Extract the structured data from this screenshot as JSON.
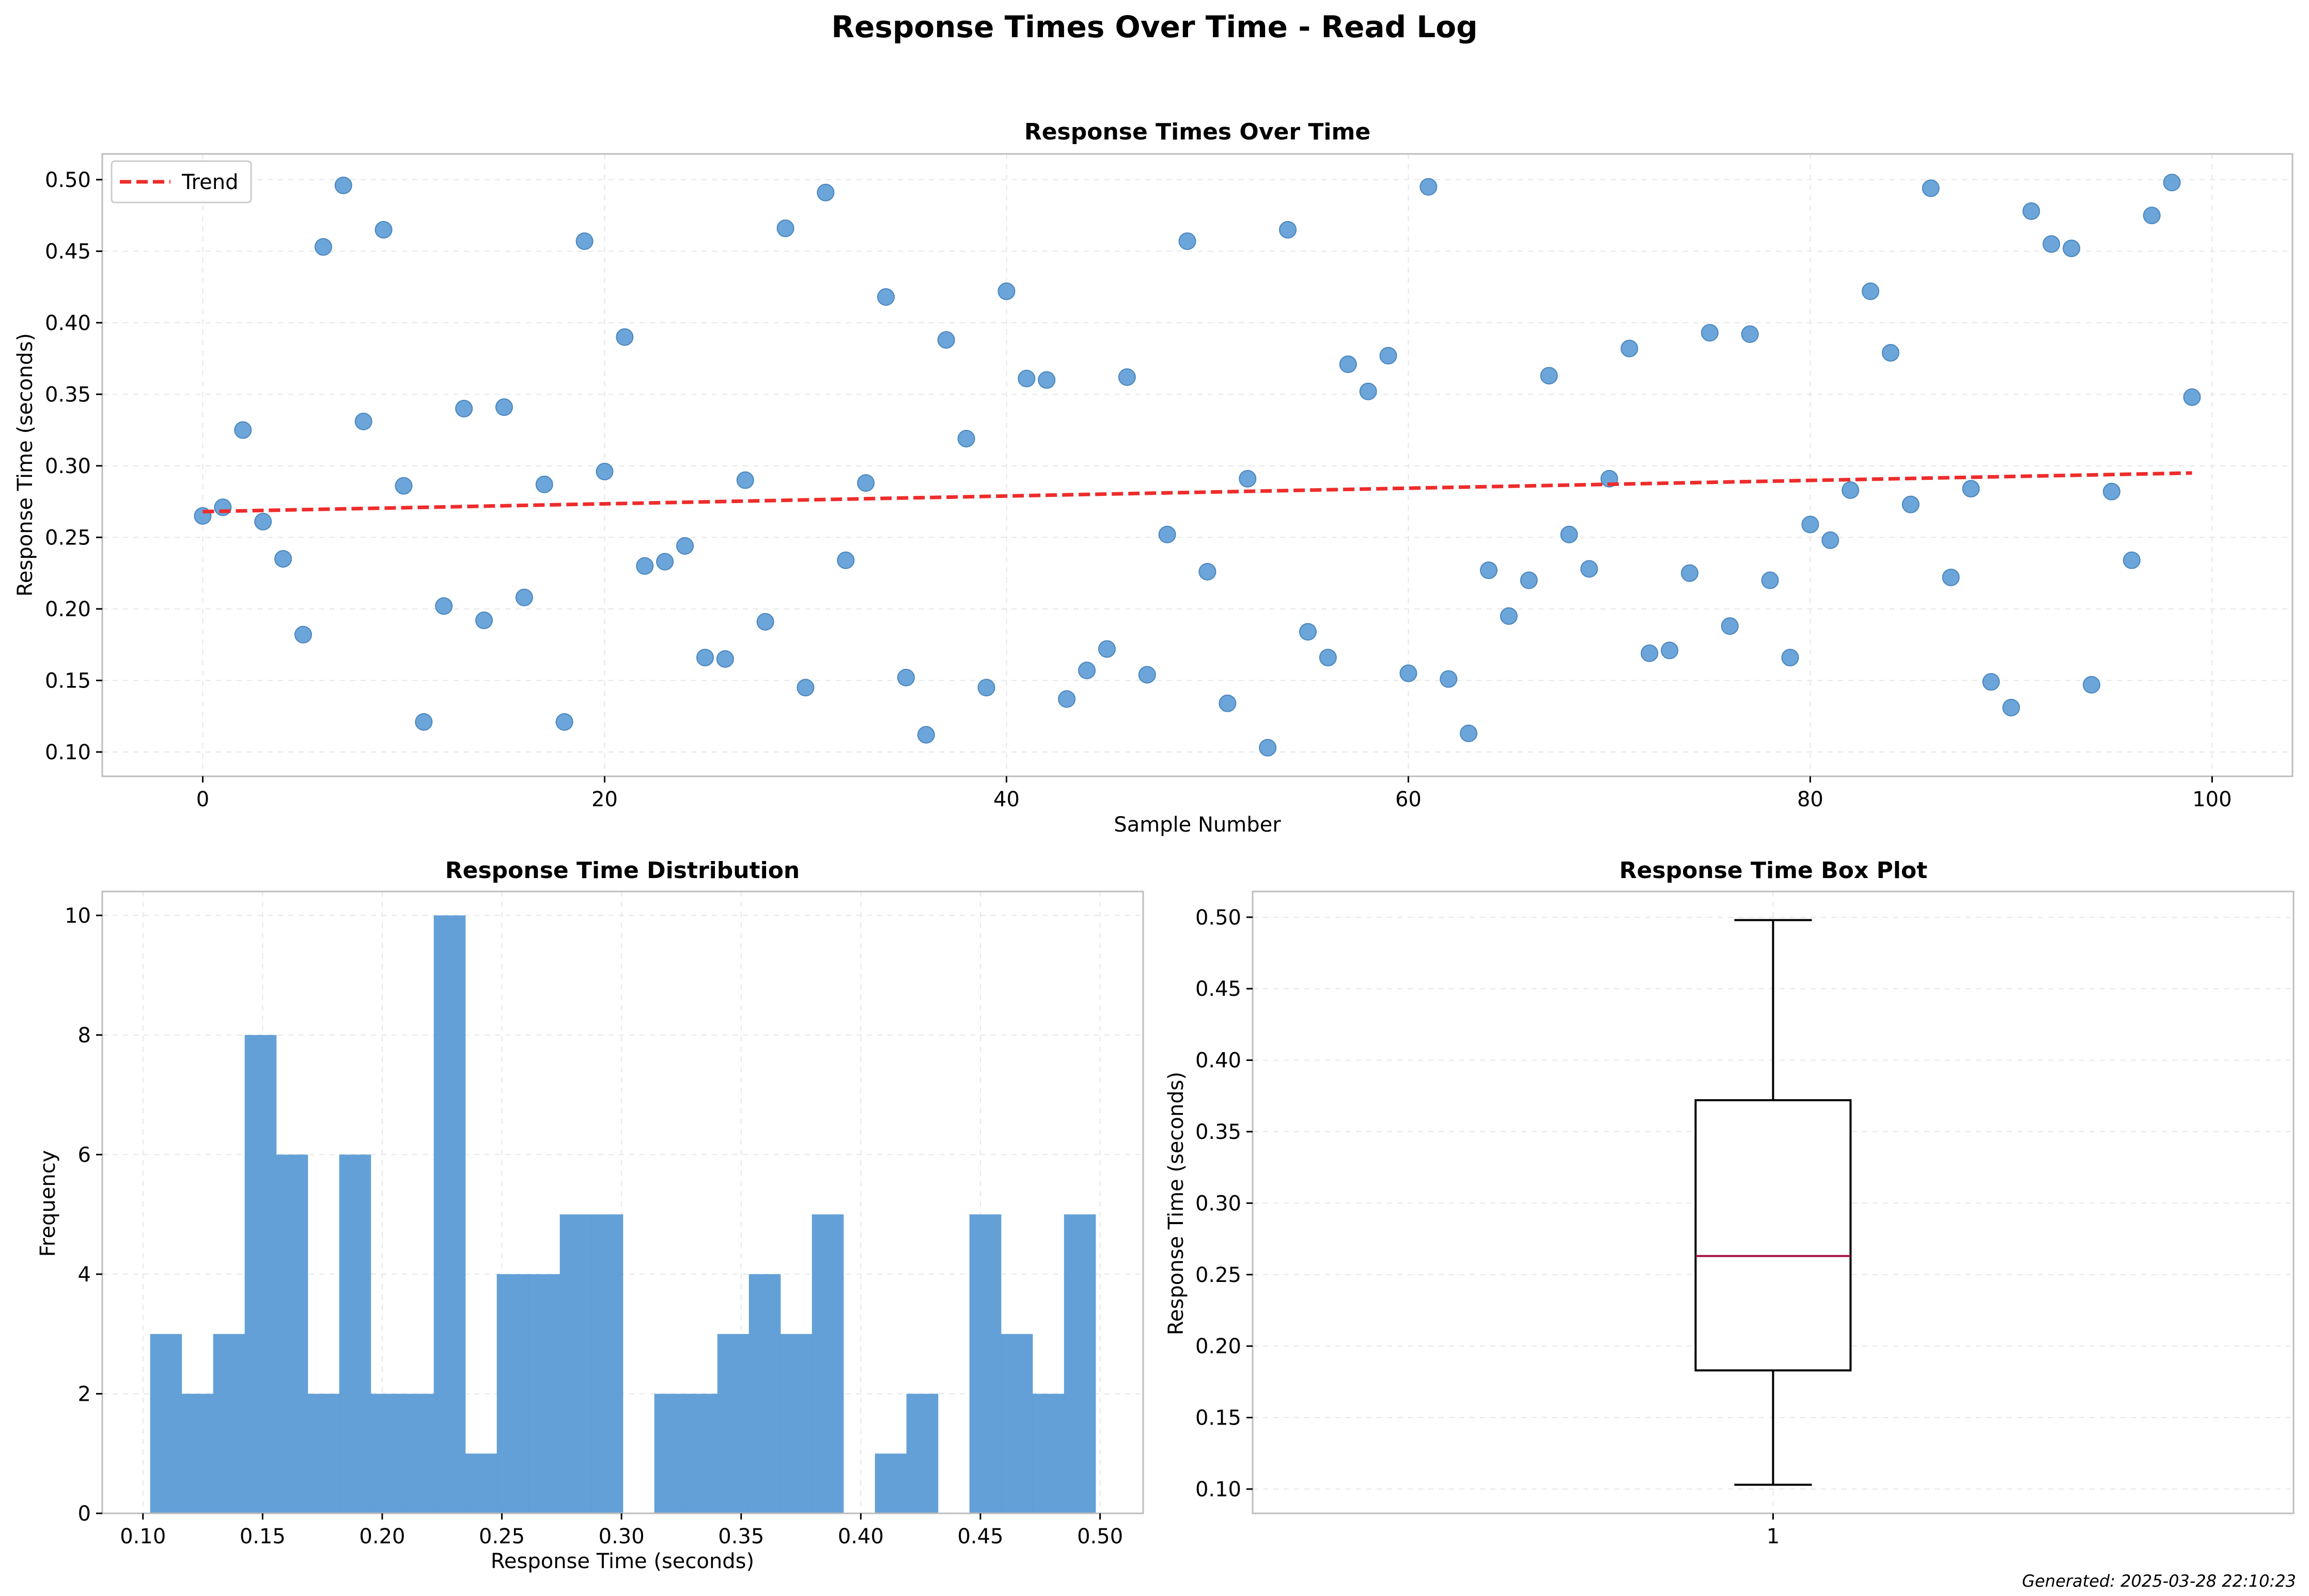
{
  "suptitle": "Response Times Over Time - Read Log",
  "footer": "Generated: 2025-03-28 22:10:23",
  "colors": {
    "points": "#5b9bd5",
    "trend": "#ee2c2c",
    "bars": "#5b9bd5",
    "median": "#a31545"
  },
  "chart_data": [
    {
      "type": "scatter",
      "title": "Response Times Over Time",
      "xlabel": "Sample Number",
      "ylabel": "Response Time (seconds)",
      "xlim": [
        -5,
        104
      ],
      "ylim": [
        0.083,
        0.518
      ],
      "xticks": [
        0,
        20,
        40,
        60,
        80,
        100
      ],
      "yticks": [
        0.1,
        0.15,
        0.2,
        0.25,
        0.3,
        0.35,
        0.4,
        0.45,
        0.5
      ],
      "grid": true,
      "legend": {
        "position": "top-left",
        "entries": [
          "Trend"
        ]
      },
      "x": [
        0,
        1,
        2,
        3,
        4,
        5,
        6,
        7,
        8,
        9,
        10,
        11,
        12,
        13,
        14,
        15,
        16,
        17,
        18,
        19,
        20,
        21,
        22,
        23,
        24,
        25,
        26,
        27,
        28,
        29,
        30,
        31,
        32,
        33,
        34,
        35,
        36,
        37,
        38,
        39,
        40,
        41,
        42,
        43,
        44,
        45,
        46,
        47,
        48,
        49,
        50,
        51,
        52,
        53,
        54,
        55,
        56,
        57,
        58,
        59,
        60,
        61,
        62,
        63,
        64,
        65,
        66,
        67,
        68,
        69,
        70,
        71,
        72,
        73,
        74,
        75,
        76,
        77,
        78,
        79,
        80,
        81,
        82,
        83,
        84,
        85,
        86,
        87,
        88,
        89,
        90,
        91,
        92,
        93,
        94,
        95,
        96,
        97,
        98,
        99
      ],
      "y": [
        0.265,
        0.271,
        0.325,
        0.261,
        0.235,
        0.182,
        0.453,
        0.496,
        0.331,
        0.465,
        0.286,
        0.121,
        0.202,
        0.34,
        0.192,
        0.341,
        0.208,
        0.287,
        0.121,
        0.457,
        0.296,
        0.39,
        0.23,
        0.233,
        0.244,
        0.166,
        0.165,
        0.29,
        0.191,
        0.466,
        0.145,
        0.491,
        0.234,
        0.288,
        0.418,
        0.152,
        0.112,
        0.388,
        0.319,
        0.145,
        0.422,
        0.361,
        0.36,
        0.137,
        0.157,
        0.172,
        0.362,
        0.154,
        0.252,
        0.457,
        0.226,
        0.134,
        0.291,
        0.103,
        0.465,
        0.184,
        0.166,
        0.371,
        0.352,
        0.377,
        0.155,
        0.495,
        0.151,
        0.113,
        0.227,
        0.195,
        0.22,
        0.363,
        0.252,
        0.228,
        0.291,
        0.382,
        0.169,
        0.171,
        0.225,
        0.393,
        0.188,
        0.392,
        0.22,
        0.166,
        0.259,
        0.248,
        0.283,
        0.422,
        0.379,
        0.273,
        0.494,
        0.222,
        0.284,
        0.149,
        0.131,
        0.478,
        0.455,
        0.452,
        0.147,
        0.282,
        0.234,
        0.475,
        0.498,
        0.348
      ],
      "trend": {
        "name": "Trend",
        "x": [
          0,
          99
        ],
        "y": [
          0.268,
          0.295
        ]
      }
    },
    {
      "type": "bar",
      "title": "Response Time Distribution",
      "xlabel": "Response Time (seconds)",
      "ylabel": "Frequency",
      "xlim": [
        0.083,
        0.518
      ],
      "ylim": [
        0,
        10.4
      ],
      "xticks": [
        0.1,
        0.15,
        0.2,
        0.25,
        0.3,
        0.35,
        0.4,
        0.45,
        0.5
      ],
      "yticks": [
        0,
        2,
        4,
        6,
        8,
        10
      ],
      "grid": true,
      "bin_start": 0.103,
      "bin_width": 0.01317,
      "values": [
        3,
        2,
        3,
        8,
        6,
        2,
        6,
        2,
        2,
        10,
        1,
        4,
        4,
        5,
        5,
        0,
        2,
        2,
        3,
        4,
        3,
        5,
        0,
        1,
        2,
        0,
        5,
        3,
        2,
        5
      ]
    },
    {
      "type": "box",
      "title": "Response Time Box Plot",
      "ylabel": "Response Time (seconds)",
      "ylim": [
        0.083,
        0.518
      ],
      "yticks": [
        0.1,
        0.15,
        0.2,
        0.25,
        0.3,
        0.35,
        0.4,
        0.45,
        0.5
      ],
      "xticks": [
        "1"
      ],
      "grid": true,
      "whisker_low": 0.103,
      "q1": 0.183,
      "median": 0.263,
      "q3": 0.372,
      "whisker_high": 0.498
    }
  ]
}
